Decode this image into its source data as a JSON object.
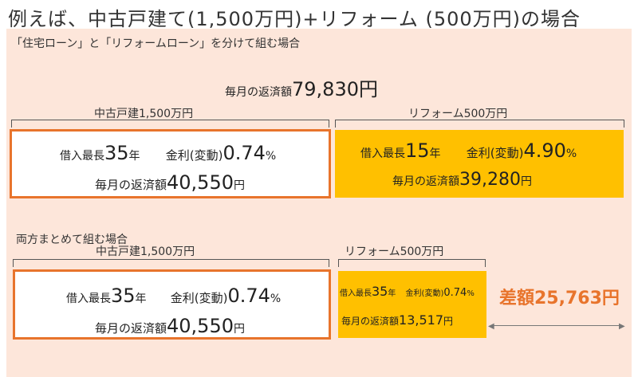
{
  "title": "例えば、中古戸建て(1,500万円)+リフォーム (500万円)の場合",
  "separate": {
    "subtitle": "「住宅ローン」と「リフォームローン」を分けて組む場合",
    "total_label": "毎月の返済額",
    "total_value": "79,830円",
    "home": {
      "bracket_label": "中古戸建1,500万円",
      "term_label": "借入最長",
      "term_value": "35",
      "term_unit": "年",
      "rate_label": "金利(変動)",
      "rate_value": "0.74",
      "rate_unit": "%",
      "payment_label": "毎月の返済額",
      "payment_value": "40,550",
      "payment_unit": "円"
    },
    "reform": {
      "bracket_label": "リフォーム500万円",
      "term_label": "借入最長",
      "term_value": "15",
      "term_unit": "年",
      "rate_label": "金利(変動)",
      "rate_value": "4.90",
      "rate_unit": "%",
      "payment_label": "毎月の返済額",
      "payment_value": "39,280",
      "payment_unit": "円"
    }
  },
  "combined": {
    "subtitle": "両方まとめて組む場合",
    "home": {
      "bracket_label": "中古戸建1,500万円",
      "term_label": "借入最長",
      "term_value": "35",
      "term_unit": "年",
      "rate_label": "金利(変動)",
      "rate_value": "0.74",
      "rate_unit": "%",
      "payment_label": "毎月の返済額",
      "payment_value": "40,550",
      "payment_unit": "円"
    },
    "reform": {
      "bracket_label": "リフォーム500万円",
      "term_label": "借入最長",
      "term_value": "35",
      "term_unit": "年",
      "rate_label": "金利(変動)",
      "rate_value": "0.74",
      "rate_unit": "%",
      "payment_label": "毎月の返済額",
      "payment_value": "13,517",
      "payment_unit": "円"
    },
    "difference": "差額25,763円"
  },
  "colors": {
    "panel": "#fde6da",
    "accent_orange": "#e8742c",
    "box_orange": "#ffc000"
  }
}
